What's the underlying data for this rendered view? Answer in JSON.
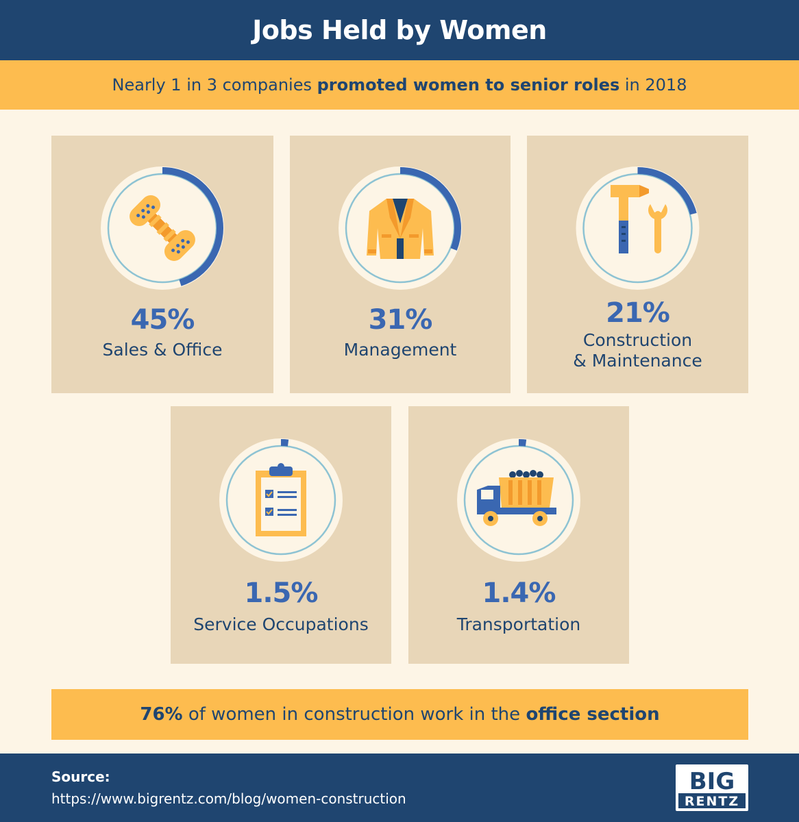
{
  "header": {
    "title": "Jobs Held by Women"
  },
  "subtitle": {
    "prefix": "Nearly 1 in 3 companies ",
    "bold": "promoted women to senior roles",
    "suffix": " in 2018"
  },
  "chart_data": {
    "type": "donut-grid",
    "categories": [
      "Sales & Office",
      "Management",
      "Construction & Maintenance",
      "Service Occupations",
      "Transportation"
    ],
    "values": [
      45,
      31,
      21,
      1.5,
      1.4
    ],
    "unit": "%"
  },
  "cards": [
    {
      "value_text": "45%",
      "label_lines": [
        "Sales & Office"
      ],
      "icon": "telephone-handset-icon"
    },
    {
      "value_text": "31%",
      "label_lines": [
        "Management"
      ],
      "icon": "blazer-jacket-icon"
    },
    {
      "value_text": "21%",
      "label_lines": [
        "Construction",
        "& Maintenance"
      ],
      "icon": "hammer-wrench-icon"
    },
    {
      "value_text": "1.5%",
      "label_lines": [
        "Service Occupations"
      ],
      "icon": "clipboard-checklist-icon"
    },
    {
      "value_text": "1.4%",
      "label_lines": [
        "Transportation"
      ],
      "icon": "dump-truck-icon"
    }
  ],
  "banner": {
    "bold1": "76%",
    "middle": " of women in construction work in the ",
    "bold2": "office section"
  },
  "footer": {
    "source_label": "Source:",
    "source_url": "https://www.bigrentz.com/blog/women-construction",
    "logo_line1": "BIG",
    "logo_line2": "RENTZ"
  },
  "colors": {
    "navy": "#1f4570",
    "blue": "#3a67b1",
    "yellow": "#fdbc4f",
    "card": "#e8d6b8",
    "cream": "#fdf5e6",
    "ring": "#8ec3d3"
  }
}
